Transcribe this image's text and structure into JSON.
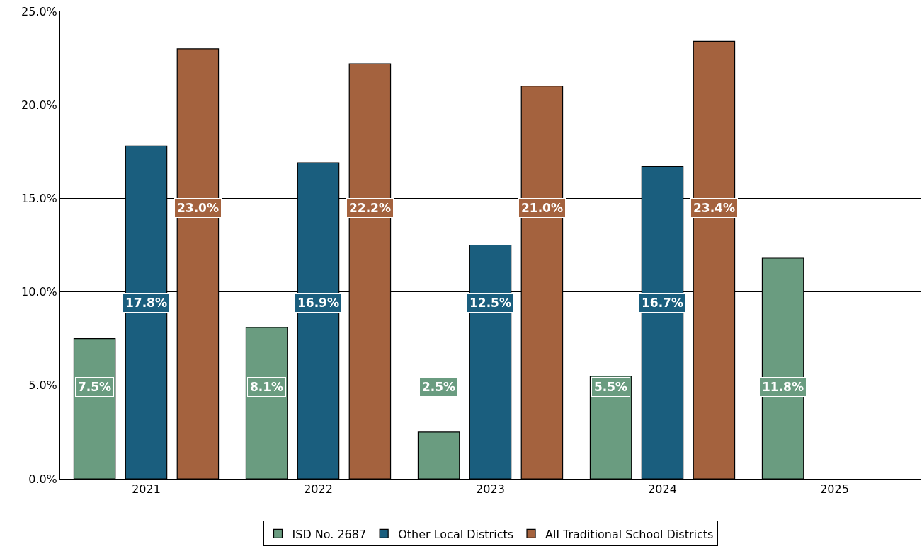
{
  "chart_data": {
    "type": "bar",
    "categories": [
      "2021",
      "2022",
      "2023",
      "2024",
      "2025"
    ],
    "series": [
      {
        "name": "ISD No. 2687",
        "color": "#6a9c80",
        "values": [
          7.5,
          8.1,
          2.5,
          5.5,
          11.8
        ],
        "value_labels": [
          "7.5%",
          "8.1%",
          "2.5%",
          "5.5%",
          "11.8%"
        ]
      },
      {
        "name": "Other Local Districts",
        "color": "#1a5e7e",
        "values": [
          17.8,
          16.9,
          12.5,
          16.7,
          null
        ],
        "value_labels": [
          "17.8%",
          "16.9%",
          "12.5%",
          "16.7%",
          null
        ]
      },
      {
        "name": "All Traditional School Districts",
        "color": "#a4623e",
        "values": [
          23.0,
          22.2,
          21.0,
          23.4,
          null
        ],
        "value_labels": [
          "23.0%",
          "22.2%",
          "21.0%",
          "23.4%",
          null
        ]
      }
    ],
    "ylim": [
      0,
      25
    ],
    "yticks": [
      {
        "value": 0,
        "label": "0.0%"
      },
      {
        "value": 5,
        "label": "5.0%"
      },
      {
        "value": 10,
        "label": "10.0%"
      },
      {
        "value": 15,
        "label": "15.0%"
      },
      {
        "value": 20,
        "label": "20.0%"
      },
      {
        "value": 25,
        "label": "25.0%"
      }
    ],
    "grid": "y",
    "legend": "bottom"
  }
}
